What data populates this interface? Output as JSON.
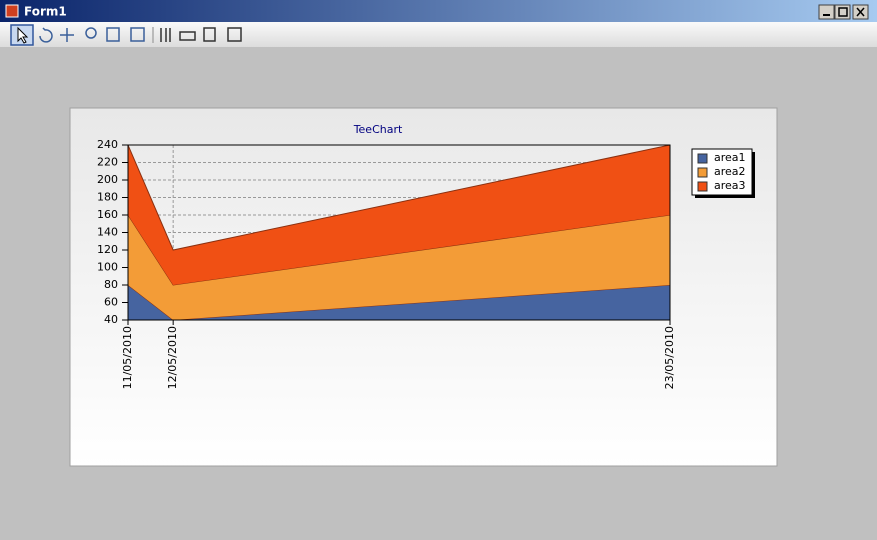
{
  "window": {
    "title": "Form1"
  },
  "chart_data": {
    "type": "stacked_area",
    "title": "TeeChart",
    "x": [
      "11/05/2010",
      "12/05/2010",
      "23/05/2010"
    ],
    "xlim": [
      "11/05/2010",
      "23/05/2010"
    ],
    "series": [
      {
        "name": "area1",
        "color": "#4664a0",
        "values": [
          80,
          40,
          80
        ]
      },
      {
        "name": "area2",
        "color": "#f39c37",
        "values": [
          80,
          40,
          80
        ]
      },
      {
        "name": "area3",
        "color": "#f05014",
        "values": [
          80,
          40,
          80
        ]
      }
    ],
    "ylim": [
      40,
      240
    ],
    "yticks": [
      40,
      60,
      80,
      100,
      120,
      140,
      160,
      180,
      200,
      220,
      240
    ],
    "grid": true,
    "legend": "right"
  }
}
